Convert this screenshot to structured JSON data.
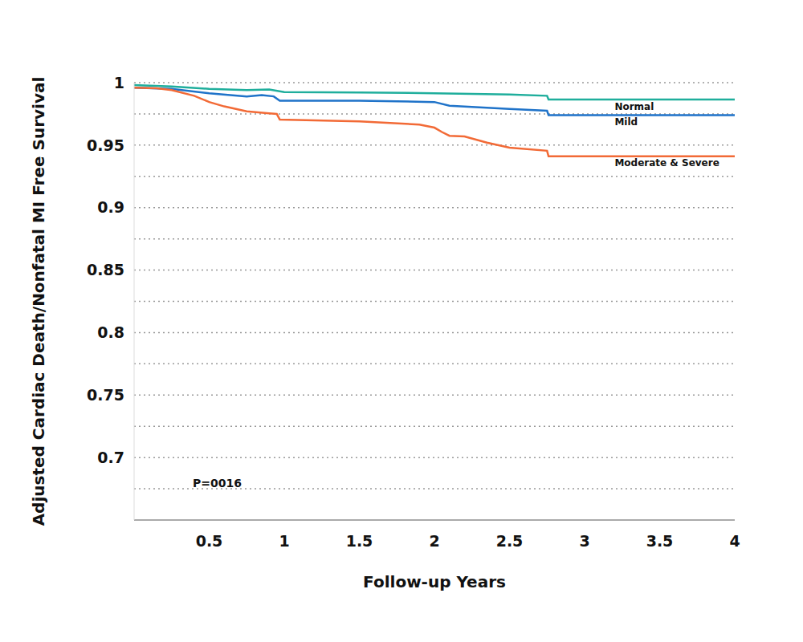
{
  "chart_data": {
    "type": "line",
    "y_label": "Adjusted Cardiac Death/Nonfatal MI Free Survival",
    "x_label": "Follow-up Years",
    "annotation": "P=0016",
    "xlim": [
      0,
      4
    ],
    "xticks": [
      0.5,
      1,
      1.5,
      2,
      2.5,
      3,
      3.5,
      4
    ],
    "ylim": [
      0.65,
      1
    ],
    "yticks": [
      0.7,
      0.75,
      0.8,
      0.85,
      0.9,
      0.95,
      1
    ],
    "grid": true,
    "series": [
      {
        "name": "Normal",
        "color": "#1fae9c",
        "x": [
          0,
          0.25,
          0.5,
          0.75,
          0.9,
          1.0,
          1.5,
          2.0,
          2.5,
          2.75,
          2.76,
          3.0,
          4.0
        ],
        "values": [
          0.998,
          0.997,
          0.995,
          0.994,
          0.9945,
          0.9925,
          0.9922,
          0.9915,
          0.9905,
          0.9895,
          0.9865,
          0.9865,
          0.9865
        ]
      },
      {
        "name": "Mild",
        "color": "#1f73c9",
        "x": [
          0,
          0.25,
          0.5,
          0.75,
          0.85,
          0.93,
          0.97,
          1.0,
          1.5,
          2.0,
          2.1,
          2.5,
          2.75,
          2.76,
          3.0,
          4.0
        ],
        "values": [
          0.996,
          0.995,
          0.9915,
          0.989,
          0.99,
          0.989,
          0.9855,
          0.9855,
          0.9855,
          0.9845,
          0.9815,
          0.979,
          0.9775,
          0.974,
          0.974,
          0.974
        ]
      },
      {
        "name": "Moderate & Severe",
        "color": "#f26a36",
        "x": [
          0,
          0.15,
          0.25,
          0.4,
          0.5,
          0.6,
          0.75,
          0.9,
          0.95,
          0.97,
          1.5,
          1.9,
          2.0,
          2.05,
          2.1,
          2.2,
          2.35,
          2.5,
          2.75,
          2.76,
          3.0,
          4.0
        ],
        "values": [
          0.996,
          0.9955,
          0.994,
          0.9895,
          0.9845,
          0.981,
          0.977,
          0.9755,
          0.975,
          0.9705,
          0.969,
          0.9665,
          0.964,
          0.9605,
          0.9575,
          0.957,
          0.952,
          0.948,
          0.9455,
          0.941,
          0.941,
          0.941
        ]
      }
    ]
  }
}
